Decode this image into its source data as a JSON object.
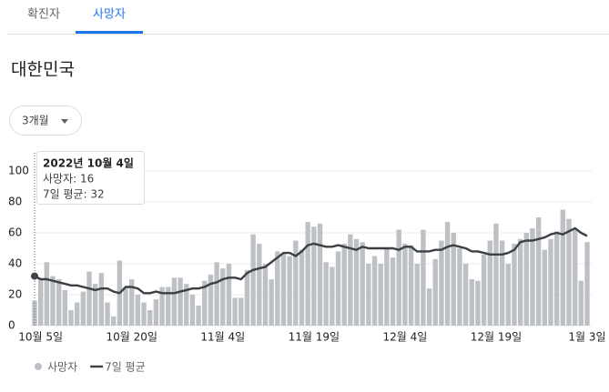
{
  "tabs": [
    "확진자",
    "사망자"
  ],
  "region": "대한민국",
  "range_button": "3개월",
  "tooltip": {
    "date": "2022년 10월 4일",
    "lines": [
      "사망자: 16",
      "7일 평균: 32"
    ]
  },
  "chart_data": {
    "type": "bar_line",
    "categories": [
      null,
      "10월 5일",
      null,
      null,
      null,
      null,
      null,
      null,
      null,
      null,
      null,
      null,
      null,
      null,
      null,
      null,
      "10월 20일",
      null,
      null,
      null,
      null,
      null,
      null,
      null,
      null,
      null,
      null,
      null,
      null,
      null,
      null,
      "11월 4일",
      null,
      null,
      null,
      null,
      null,
      null,
      null,
      null,
      null,
      null,
      null,
      null,
      null,
      null,
      "11월 19일",
      null,
      null,
      null,
      null,
      null,
      null,
      null,
      null,
      null,
      null,
      null,
      null,
      null,
      null,
      "12월 4일",
      null,
      null,
      null,
      null,
      null,
      null,
      null,
      null,
      null,
      null,
      null,
      null,
      null,
      null,
      "12월 19일",
      null,
      null,
      null,
      null,
      null,
      null,
      null,
      null,
      null,
      null,
      null,
      null,
      null,
      null,
      "1월 3일"
    ],
    "series": [
      {
        "name": "사망자",
        "kind": "bar",
        "color": "#bdc1c6",
        "values": [
          16,
          30,
          41,
          32,
          30,
          23,
          10,
          15,
          22,
          35,
          27,
          34,
          15,
          6,
          42,
          25,
          30,
          20,
          15,
          10,
          17,
          25,
          25,
          31,
          31,
          27,
          20,
          13,
          29,
          33,
          41,
          37,
          40,
          18,
          18,
          36,
          59,
          53,
          40,
          30,
          48,
          47,
          45,
          55,
          49,
          67,
          64,
          66,
          41,
          38,
          48,
          53,
          59,
          56,
          54,
          40,
          45,
          40,
          50,
          44,
          62,
          53,
          52,
          40,
          62,
          24,
          43,
          55,
          67,
          60,
          50,
          40,
          30,
          29,
          46,
          55,
          66,
          55,
          40,
          53,
          56,
          60,
          63,
          70,
          49,
          56,
          61,
          75,
          69,
          63,
          29,
          54
        ]
      },
      {
        "name": "7일 평균",
        "kind": "line",
        "color": "#3c4043",
        "values": [
          32,
          30,
          30,
          29,
          28,
          27,
          26,
          26,
          25,
          24,
          23,
          24,
          24,
          22,
          21,
          25,
          25,
          24,
          21,
          21,
          22,
          21,
          21,
          21,
          22,
          23,
          24,
          24,
          25,
          27,
          28,
          30,
          31,
          31,
          30,
          34,
          36,
          37,
          38,
          41,
          44,
          47,
          47,
          45,
          48,
          52,
          53,
          52,
          51,
          51,
          52,
          51,
          50,
          49,
          51,
          50,
          50,
          50,
          50,
          50,
          49,
          51,
          51,
          48,
          48,
          48,
          49,
          49,
          51,
          52,
          51,
          50,
          48,
          48,
          47,
          46,
          46,
          46,
          47,
          49,
          54,
          55,
          55,
          56,
          57,
          59,
          60,
          59,
          61,
          63,
          60,
          58
        ]
      }
    ],
    "ylim": [
      0,
      100
    ],
    "yticks": [
      0,
      20,
      40,
      60,
      80,
      100
    ],
    "grid": true
  }
}
